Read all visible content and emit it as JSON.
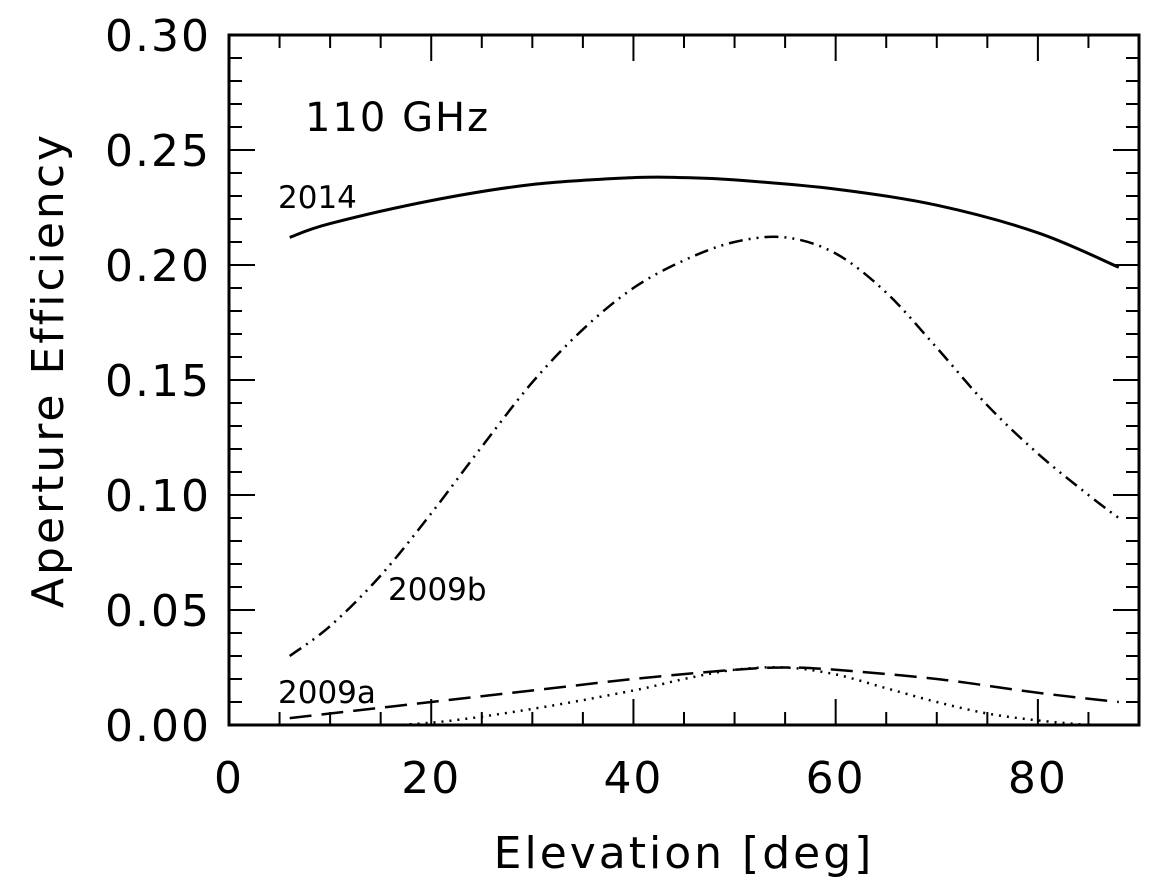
{
  "chart_data": {
    "type": "line",
    "title": "",
    "xlabel": "Elevation [deg]",
    "ylabel": "Aperture Efficiency",
    "xlim": [
      0,
      90
    ],
    "ylim": [
      0,
      0.3
    ],
    "xticks": [
      "0",
      "20",
      "40",
      "60",
      "80"
    ],
    "yticks": [
      "0.00",
      "0.05",
      "0.10",
      "0.15",
      "0.20",
      "0.25",
      "0.30"
    ],
    "annotations": [
      "110 GHz"
    ],
    "grid": false,
    "series": [
      {
        "name": "2014",
        "style": "solid",
        "x": [
          6,
          10,
          20,
          30,
          40,
          45,
          50,
          60,
          70,
          80,
          88
        ],
        "y": [
          0.212,
          0.218,
          0.228,
          0.235,
          0.238,
          0.238,
          0.237,
          0.233,
          0.226,
          0.214,
          0.199
        ]
      },
      {
        "name": "2009b",
        "style": "dash-dot-dot",
        "x": [
          6,
          10,
          15,
          20,
          25,
          30,
          35,
          40,
          45,
          50,
          55,
          60,
          65,
          70,
          75,
          80,
          85,
          88
        ],
        "y": [
          0.03,
          0.043,
          0.065,
          0.092,
          0.121,
          0.149,
          0.172,
          0.19,
          0.202,
          0.21,
          0.212,
          0.205,
          0.188,
          0.164,
          0.139,
          0.118,
          0.1,
          0.09
        ]
      },
      {
        "name": "2009a",
        "style": "dashed",
        "x": [
          6,
          10,
          20,
          30,
          40,
          50,
          55,
          60,
          70,
          80,
          88
        ],
        "y": [
          0.003,
          0.005,
          0.01,
          0.015,
          0.02,
          0.024,
          0.025,
          0.024,
          0.02,
          0.014,
          0.01
        ]
      },
      {
        "name": "",
        "style": "dotted",
        "x": [
          6,
          10,
          20,
          30,
          40,
          45,
          50,
          55,
          60,
          65,
          70,
          75,
          80,
          85,
          88
        ],
        "y": [
          -0.002,
          -0.001,
          0.001,
          0.007,
          0.015,
          0.02,
          0.024,
          0.025,
          0.022,
          0.016,
          0.01,
          0.005,
          0.002,
          0.0,
          -0.001
        ]
      }
    ]
  }
}
